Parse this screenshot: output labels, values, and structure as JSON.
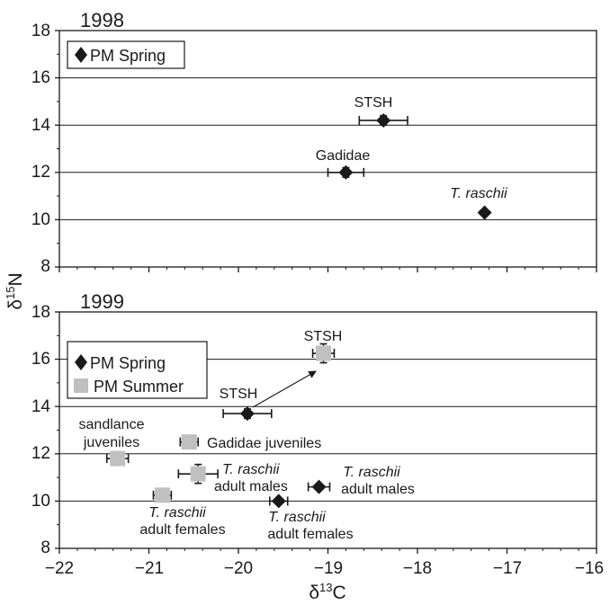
{
  "chart_data": [
    {
      "type": "scatter",
      "title": "1998",
      "xlim": [
        -22,
        -16
      ],
      "ylim": [
        8,
        18
      ],
      "yticks": [
        8,
        10,
        12,
        14,
        16,
        18
      ],
      "grid": "horizontal",
      "legend": {
        "placement": "top-left",
        "entries": [
          "PM Spring"
        ]
      },
      "series": [
        {
          "name": "PM Spring",
          "marker": "diamond",
          "color": "#1a1a1a",
          "points": [
            {
              "label": "STSH",
              "x": -18.38,
              "y": 14.2,
              "xerr": 0.27,
              "yerr": 0.2
            },
            {
              "label": "Gadidae",
              "x": -18.8,
              "y": 12.0,
              "xerr": 0.2,
              "yerr": 0.2
            },
            {
              "label": "T. raschii",
              "x": -17.25,
              "y": 10.3,
              "xerr": 0.0,
              "yerr": 0.0
            }
          ]
        }
      ]
    },
    {
      "type": "scatter",
      "title": "1999",
      "xlim": [
        -22,
        -16
      ],
      "ylim": [
        8,
        18
      ],
      "xticks": [
        -22,
        -21,
        -20,
        -19,
        -18,
        -17,
        -16
      ],
      "yticks": [
        8,
        10,
        12,
        14,
        16,
        18
      ],
      "grid": "horizontal",
      "xlabel": "δ13C",
      "ylabel": "δ15N",
      "legend": {
        "placement": "top-left",
        "entries": [
          "PM Spring",
          "PM Summer"
        ]
      },
      "series": [
        {
          "name": "PM Spring",
          "marker": "diamond",
          "color": "#1a1a1a",
          "points": [
            {
              "label": "STSH",
              "x": -19.9,
              "y": 13.7,
              "xerr": 0.27,
              "yerr": 0.2
            },
            {
              "label": "T. raschii adult males",
              "x": -19.1,
              "y": 10.6,
              "xerr": 0.12,
              "yerr": 0.0
            },
            {
              "label": "T. raschii adult females",
              "x": -19.55,
              "y": 10.0,
              "xerr": 0.1,
              "yerr": 0.0
            }
          ]
        },
        {
          "name": "PM Summer",
          "marker": "square",
          "color": "#c0c0c0",
          "points": [
            {
              "label": "STSH",
              "x": -19.05,
              "y": 16.25,
              "xerr": 0.12,
              "yerr": 0.4
            },
            {
              "label": "Gadidae juveniles",
              "x": -20.55,
              "y": 12.5,
              "xerr": 0.1,
              "yerr": 0.0
            },
            {
              "label": "sandlance juveniles",
              "x": -21.35,
              "y": 11.8,
              "xerr": 0.12,
              "yerr": 0.0
            },
            {
              "label": "T. raschii adult males",
              "x": -20.45,
              "y": 11.15,
              "xerr": 0.22,
              "yerr": 0.4
            },
            {
              "label": "T. raschii adult females",
              "x": -20.85,
              "y": 10.25,
              "xerr": 0.1,
              "yerr": 0.0
            }
          ]
        }
      ],
      "annotations": [
        {
          "type": "arrow",
          "from": "PM Spring STSH",
          "to": "PM Summer STSH"
        }
      ]
    }
  ],
  "labels": {
    "p1_year": "1998",
    "p2_year": "1999",
    "legend_spring": "PM Spring",
    "legend_summer": "PM Summer",
    "p1_stsh": "STSH",
    "p1_gadidae": "Gadidae",
    "p1_traschii": "T. raschii",
    "p2_stsh_summer": "STSH",
    "p2_stsh_spring": "STSH",
    "p2_sandlance_1": "sandlance",
    "p2_sandlance_2": "juveniles",
    "p2_gadidae_juv": "Gadidae juveniles",
    "p2_tr_males_summer_1": "T. raschii",
    "p2_tr_males_summer_2": "adult males",
    "p2_tr_males_spring_1": "T. raschii",
    "p2_tr_males_spring_2": "adult males",
    "p2_tr_females_summer_1": "T. raschii",
    "p2_tr_females_summer_2": "adult females",
    "p2_tr_females_spring_1": "T. raschii",
    "p2_tr_females_spring_2": "adult females",
    "y_tick_8": "8",
    "y_tick_10": "10",
    "y_tick_12": "12",
    "y_tick_14": "14",
    "y_tick_16": "16",
    "y_tick_18": "18",
    "x_tick_m22": "−22",
    "x_tick_m21": "−21",
    "x_tick_m20": "−20",
    "x_tick_m19": "−19",
    "x_tick_m18": "−18",
    "x_tick_m17": "−17",
    "x_tick_m16": "−16",
    "ylabel_delta": "δ",
    "ylabel_sup": "15",
    "ylabel_elem": "N",
    "xlabel_delta": "δ",
    "xlabel_sup": "13",
    "xlabel_elem": "C"
  }
}
